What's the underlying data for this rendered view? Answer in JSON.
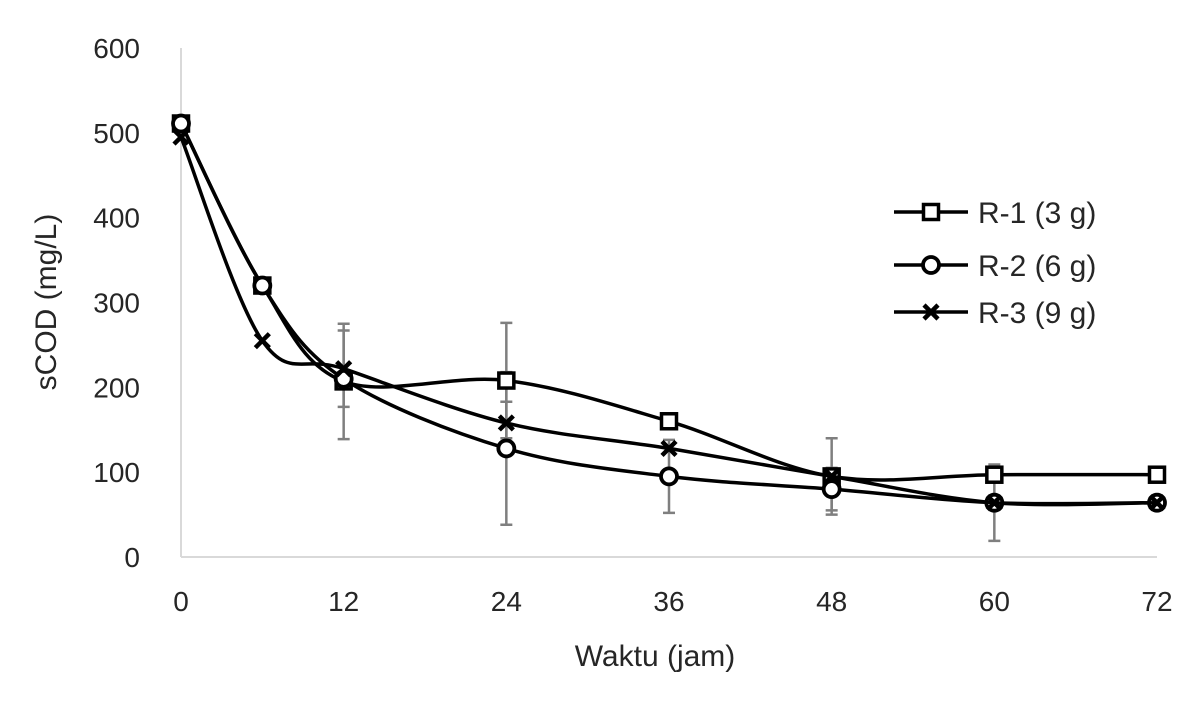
{
  "chart_data": {
    "type": "line",
    "title": "",
    "xlabel": "Waktu (jam)",
    "ylabel": "sCOD (mg/L)",
    "xlim": [
      0,
      72
    ],
    "ylim": [
      0,
      600
    ],
    "x_ticks": [
      0,
      12,
      24,
      36,
      48,
      60,
      72
    ],
    "y_ticks": [
      0,
      100,
      200,
      300,
      400,
      500,
      600
    ],
    "grid": false,
    "legend_position": "right",
    "smooth_lines": true,
    "series": [
      {
        "name": "R-1 (3 g)",
        "marker": "square",
        "x": [
          0,
          6,
          12,
          24,
          36,
          48,
          60,
          72
        ],
        "y": [
          511,
          320,
          207,
          208,
          160,
          95,
          97,
          97
        ],
        "error": [
          null,
          null,
          68,
          68,
          null,
          45,
          null,
          null
        ]
      },
      {
        "name": "R-2 (6 g)",
        "marker": "circle",
        "x": [
          0,
          6,
          12,
          24,
          36,
          48,
          60,
          72
        ],
        "y": [
          511,
          320,
          210,
          128,
          95,
          80,
          64,
          64
        ],
        "error": [
          null,
          null,
          null,
          90,
          43,
          25,
          45,
          null
        ]
      },
      {
        "name": "R-3 (9 g)",
        "marker": "x",
        "x": [
          0,
          6,
          12,
          24,
          36,
          48,
          60,
          72
        ],
        "y": [
          495,
          255,
          222,
          158,
          128,
          95,
          64,
          64
        ],
        "error": [
          null,
          null,
          45,
          25,
          null,
          null,
          null,
          null
        ]
      }
    ]
  }
}
